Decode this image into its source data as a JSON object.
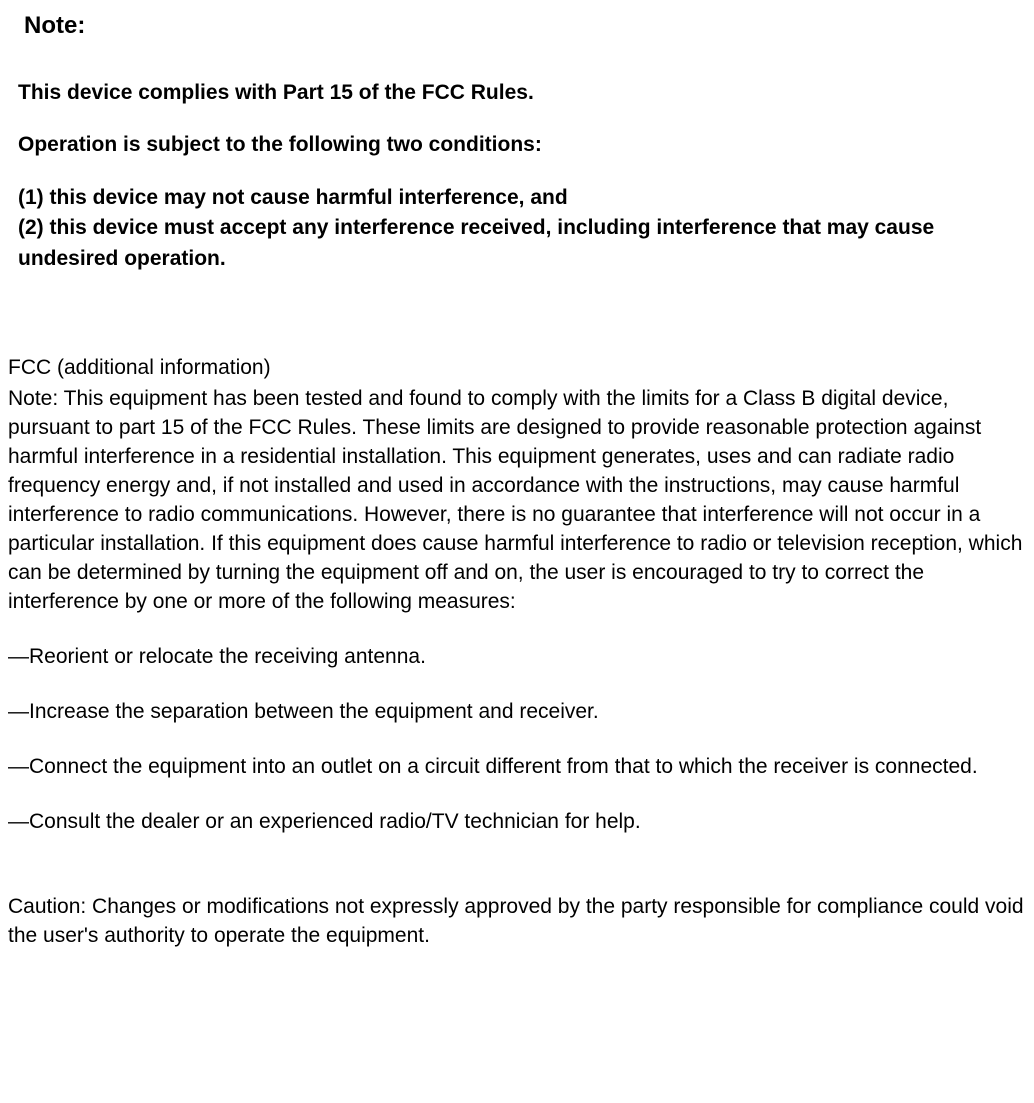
{
  "note": {
    "heading": "Note:",
    "line1": "This device complies with Part 15 of the FCC Rules.",
    "line2": "Operation is subject to the following two conditions:",
    "cond1": "(1) this device may not cause harmful interference, and",
    "cond2": "(2) this device must accept any interference received, including interference that may cause undesired operation."
  },
  "fcc": {
    "title": "FCC (additional information)",
    "intro": "Note: This equipment has been tested and found to comply with the limits for a Class B digital device, pursuant to part 15 of the FCC Rules. These limits are designed to provide reasonable protection against harmful interference in a residential installation. This equipment generates, uses and can radiate radio frequency energy and, if not installed and used in accordance with the instructions, may cause harmful interference to radio communications. However, there is no guarantee that interference will not occur in a particular installation. If this equipment does cause harmful interference to radio or television reception, which can be determined by turning the equipment off and on, the user is encouraged to try to correct the interference by one or more of the following measures:",
    "measures": [
      "—Reorient or relocate the receiving antenna.",
      "—Increase the separation between the equipment and receiver.",
      "—Connect the equipment into an outlet on a circuit different from that to which the receiver is connected.",
      "—Consult the dealer or an experienced radio/TV technician for help."
    ],
    "caution": "Caution: Changes or modifications not expressly approved by the party responsible for compliance could void the user's authority to operate the equipment."
  },
  "styles": {
    "background_color": "#ffffff",
    "text_color": "#000000",
    "font_family": "Arial",
    "heading_fontsize": 24,
    "bold_fontsize": 21,
    "body_fontsize": 21
  }
}
